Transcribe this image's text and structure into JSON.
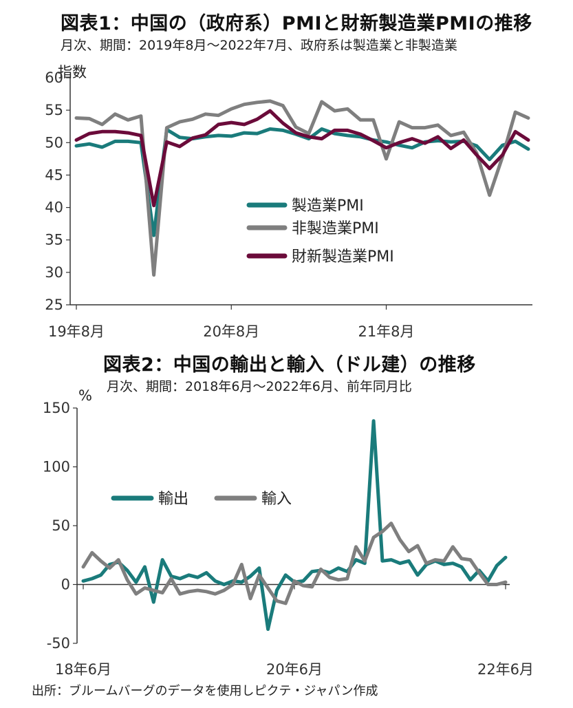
{
  "chart1": {
    "title": "図表1：中国の（政府系）PMIと財新製造業PMIの推移",
    "subtitle": "月次、期間：2019年8月～2022年7月、政府系は製造業と非製造業",
    "y_unit": "指数"
  },
  "chart2": {
    "title": "図表2：中国の輸出と輸入（ドル建）の推移",
    "subtitle": "月次、期間：2018年6月～2022年6月、前年同月比",
    "y_unit": "%"
  },
  "source": "出所：ブルームバーグのデータを使用しピクテ・ジャパン作成",
  "colors": {
    "teal": "#1a7b7b",
    "gray": "#7f7f7f",
    "maroon": "#6b0b3a",
    "axis": "#333333"
  },
  "chart_data": [
    {
      "type": "line",
      "title": "図表1：中国の（政府系）PMIと財新製造業PMIの推移",
      "ylabel": "指数",
      "ylim": [
        25,
        60
      ],
      "yticks": [
        25,
        30,
        35,
        40,
        45,
        50,
        55,
        60
      ],
      "x_tick_labels": [
        {
          "label": "19年8月",
          "index": 0
        },
        {
          "label": "20年8月",
          "index": 12
        },
        {
          "label": "21年8月",
          "index": 24
        }
      ],
      "x_count": 36,
      "legend_position": "center",
      "series": [
        {
          "name": "製造業PMI",
          "color": "#1a7b7b",
          "values": [
            49.5,
            49.8,
            49.3,
            50.2,
            50.2,
            50.0,
            35.7,
            52.0,
            50.8,
            50.6,
            50.9,
            51.1,
            51.0,
            51.5,
            51.4,
            52.1,
            51.9,
            51.3,
            50.6,
            52.1,
            51.4,
            51.1,
            50.9,
            50.4,
            50.1,
            49.6,
            49.2,
            50.1,
            50.3,
            50.1,
            50.2,
            49.5,
            47.4,
            49.6,
            50.2,
            49.0
          ]
        },
        {
          "name": "非製造業PMI",
          "color": "#7f7f7f",
          "values": [
            53.8,
            53.7,
            52.8,
            54.4,
            53.5,
            54.1,
            29.6,
            52.3,
            53.2,
            53.6,
            54.4,
            54.2,
            55.2,
            55.9,
            56.2,
            56.4,
            55.7,
            52.4,
            51.4,
            56.3,
            54.9,
            55.2,
            53.5,
            53.5,
            47.5,
            53.2,
            52.3,
            52.3,
            52.7,
            51.1,
            51.6,
            48.4,
            41.9,
            47.8,
            54.7,
            53.8
          ]
        },
        {
          "name": "財新製造業PMI",
          "color": "#6b0b3a",
          "values": [
            50.4,
            51.4,
            51.7,
            51.7,
            51.5,
            51.1,
            40.3,
            50.1,
            49.4,
            50.7,
            51.2,
            52.8,
            53.1,
            52.8,
            53.6,
            54.9,
            53.0,
            51.5,
            50.9,
            50.6,
            51.9,
            51.9,
            51.3,
            50.3,
            49.2,
            50.0,
            50.6,
            49.9,
            50.9,
            49.1,
            50.4,
            48.1,
            46.0,
            48.1,
            51.7,
            50.4
          ]
        }
      ]
    },
    {
      "type": "line",
      "title": "図表2：中国の輸出と輸入（ドル建）の推移",
      "ylabel": "%",
      "ylim": [
        -50,
        150
      ],
      "yticks": [
        -50,
        0,
        50,
        100,
        150
      ],
      "x_tick_labels": [
        {
          "label": "18年6月",
          "index": 0
        },
        {
          "label": "20年6月",
          "index": 24
        },
        {
          "label": "22年6月",
          "index": 48
        }
      ],
      "x_count": 49,
      "legend_position": "top-left",
      "series": [
        {
          "name": "輸出",
          "color": "#1a7b7b",
          "values": [
            3,
            5,
            8,
            17,
            19,
            12,
            2,
            15,
            -15,
            21,
            7,
            5,
            8,
            6,
            10,
            3,
            0,
            3,
            2,
            7,
            14,
            -38,
            -5,
            8,
            2,
            3,
            11,
            12,
            10,
            14,
            11,
            21,
            18,
            139,
            20,
            21,
            18,
            20,
            8,
            17,
            20,
            17,
            18,
            15,
            4,
            12,
            3,
            16,
            23
          ]
        },
        {
          "name": "輸入",
          "color": "#7f7f7f",
          "values": [
            15,
            27,
            20,
            14,
            21,
            4,
            -8,
            -3,
            -5,
            -7,
            5,
            -8,
            -6,
            -5,
            -6,
            -8,
            -5,
            0,
            17,
            -12,
            8,
            -3,
            -14,
            -16,
            3,
            -1,
            -2,
            13,
            6,
            4,
            5,
            32,
            20,
            40,
            45,
            52,
            38,
            28,
            33,
            18,
            21,
            20,
            32,
            22,
            21,
            10,
            0,
            0,
            2
          ]
        }
      ]
    }
  ]
}
